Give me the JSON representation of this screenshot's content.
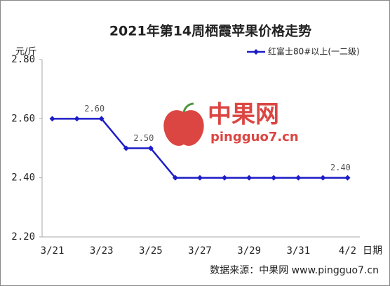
{
  "chart_data": {
    "type": "line",
    "title": "2021年第14周栖霞苹果价格走势",
    "y_label": "元/斤",
    "x_label": "日期",
    "source": "数据来源：中果网 www.pingguo7.cn",
    "watermark": {
      "brand": "中果网",
      "site": "pingguo7.cn"
    },
    "categories": [
      "3/21",
      null,
      "3/23",
      null,
      "3/25",
      null,
      "3/27",
      null,
      "3/29",
      null,
      "3/31",
      null,
      "4/2"
    ],
    "series": [
      {
        "name": "红富士80#以上(一二级)",
        "color": "#1c1cc8",
        "values": [
          2.6,
          2.6,
          2.6,
          2.5,
          2.5,
          2.4,
          2.4,
          2.4,
          2.4,
          2.4,
          2.4,
          2.4,
          2.4
        ],
        "value_labels": [
          null,
          null,
          "2.60",
          null,
          "2.50",
          null,
          null,
          null,
          null,
          null,
          null,
          null,
          "2.40"
        ]
      }
    ],
    "ylim": [
      2.2,
      2.8
    ],
    "yticks": [
      {
        "value": 2.2,
        "label": "2.20"
      },
      {
        "value": 2.4,
        "label": "2.40"
      },
      {
        "value": 2.6,
        "label": "2.60"
      },
      {
        "value": 2.8,
        "label": "2.80"
      }
    ],
    "legend": "top-right"
  }
}
